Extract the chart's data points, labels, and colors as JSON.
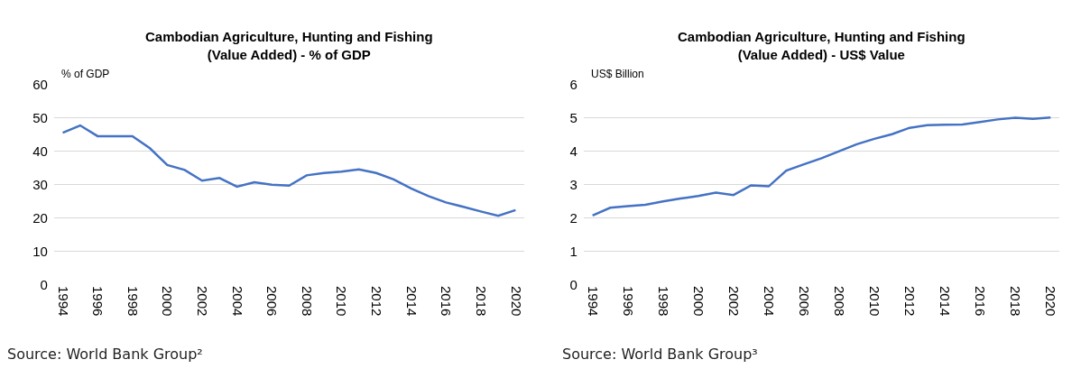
{
  "chart_data": [
    {
      "type": "line",
      "title": "Cambodian Agriculture, Hunting and Fishing\n(Value Added) - % of GDP",
      "ylabel": "% of GDP",
      "x": [
        1994,
        1995,
        1996,
        1997,
        1998,
        1999,
        2000,
        2001,
        2002,
        2003,
        2004,
        2005,
        2006,
        2007,
        2008,
        2009,
        2010,
        2011,
        2012,
        2013,
        2014,
        2015,
        2016,
        2017,
        2018,
        2019,
        2020
      ],
      "series": [
        {
          "color": "#4472c4",
          "values": [
            45.5,
            47.7,
            44.5,
            44.5,
            44.5,
            40.9,
            35.9,
            34.4,
            31.2,
            32.0,
            29.4,
            30.7,
            30.0,
            29.7,
            32.8,
            33.5,
            33.9,
            34.6,
            33.5,
            31.6,
            28.9,
            26.6,
            24.7,
            23.4,
            22.0,
            20.7,
            22.4
          ]
        }
      ],
      "xlim": [
        1993.5,
        2020.5
      ],
      "xticks": [
        1994,
        1996,
        1998,
        2000,
        2002,
        2004,
        2006,
        2008,
        2010,
        2012,
        2014,
        2016,
        2018,
        2020
      ],
      "ylim": [
        0,
        60
      ],
      "yticks": [
        0,
        10,
        20,
        30,
        40,
        50,
        60
      ],
      "grid": "y",
      "marker": "none",
      "line_style": "solid",
      "annotations": [
        "Source: World Bank Group²"
      ]
    },
    {
      "type": "line",
      "title": "Cambodian Agriculture, Hunting and Fishing\n(Value Added) - US$ Value",
      "ylabel": "US$ Billion",
      "x": [
        1994,
        1995,
        1996,
        1997,
        1998,
        1999,
        2000,
        2001,
        2002,
        2003,
        2004,
        2005,
        2006,
        2007,
        2008,
        2009,
        2010,
        2011,
        2012,
        2013,
        2014,
        2015,
        2016,
        2017,
        2018,
        2019,
        2020
      ],
      "series": [
        {
          "color": "#4472c4",
          "values": [
            2.08,
            2.31,
            2.36,
            2.4,
            2.5,
            2.59,
            2.66,
            2.76,
            2.69,
            2.98,
            2.95,
            3.42,
            3.61,
            3.79,
            4.0,
            4.21,
            4.37,
            4.51,
            4.7,
            4.78,
            4.79,
            4.8,
            4.87,
            4.95,
            5.0,
            4.97,
            5.01
          ]
        }
      ],
      "xlim": [
        1993.5,
        2020.5
      ],
      "xticks": [
        1994,
        1996,
        1998,
        2000,
        2002,
        2004,
        2006,
        2008,
        2010,
        2012,
        2014,
        2016,
        2018,
        2020
      ],
      "ylim": [
        0,
        6
      ],
      "yticks": [
        0,
        1,
        2,
        3,
        4,
        5,
        6
      ],
      "grid": "y",
      "marker": "none",
      "line_style": "solid",
      "annotations": [
        "Source: World Bank Group³"
      ]
    }
  ]
}
